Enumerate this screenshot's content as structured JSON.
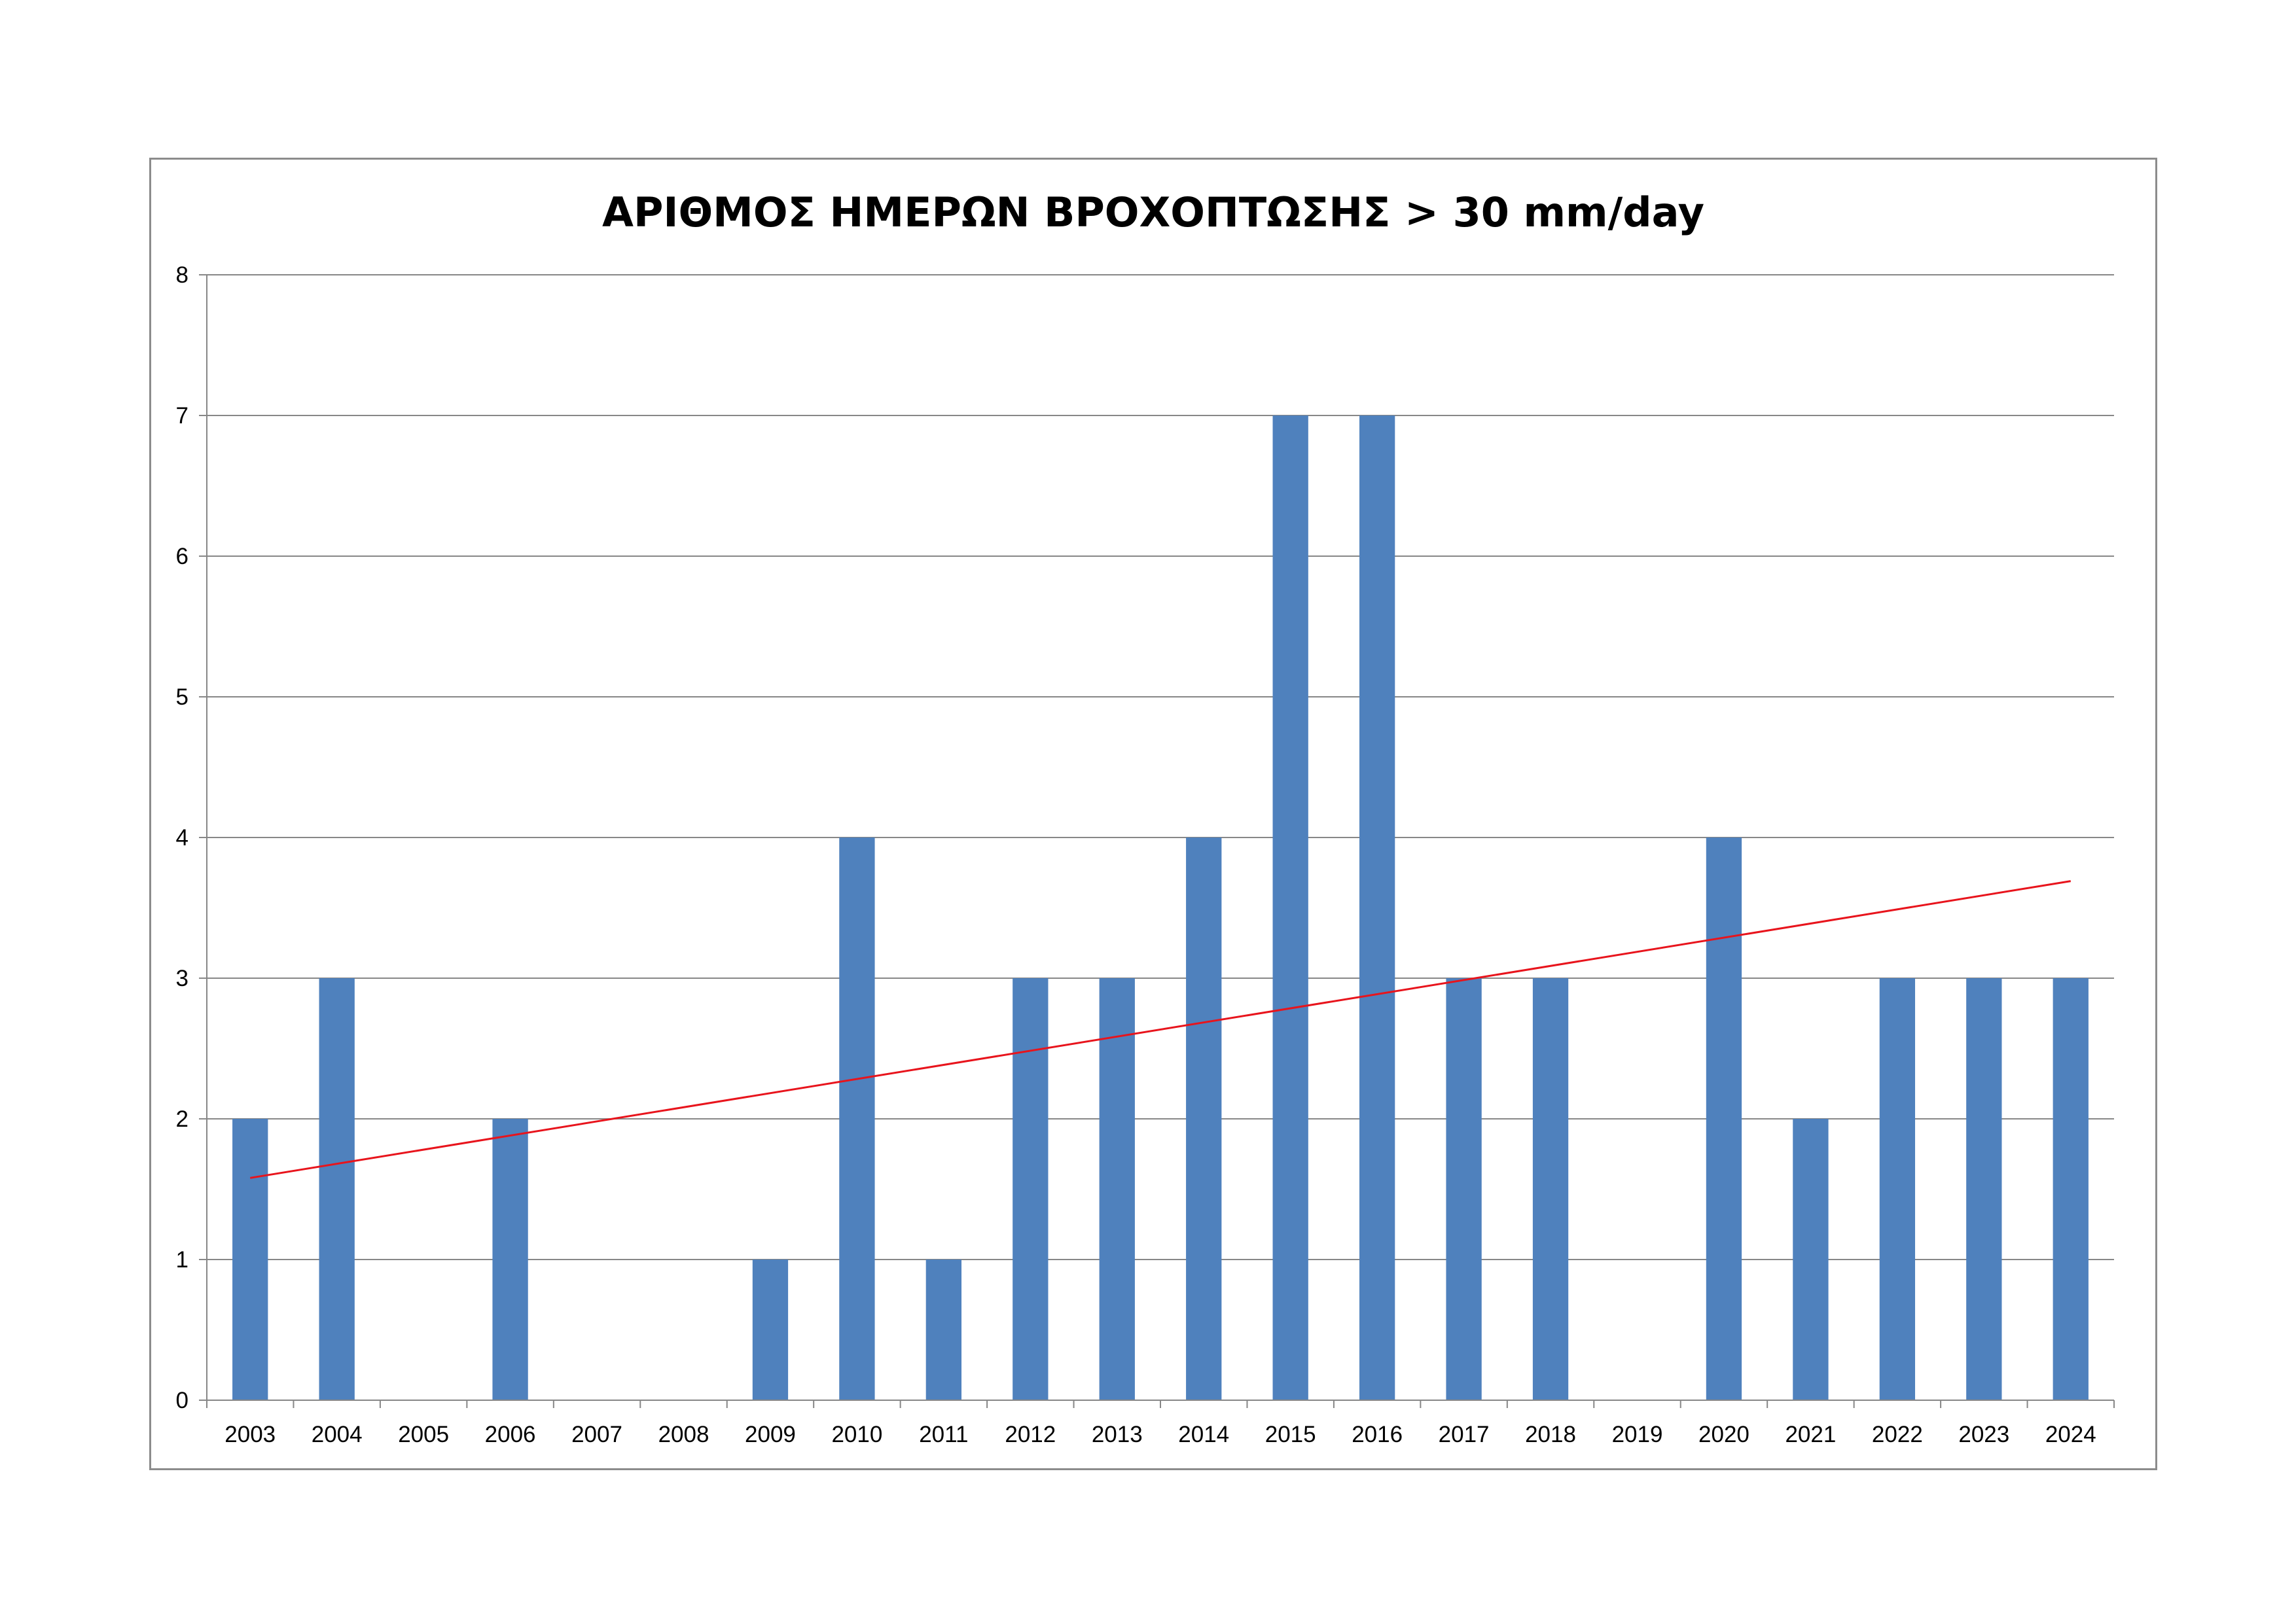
{
  "chart_data": {
    "type": "bar",
    "title": "ΑΡΙΘΜΟΣ ΗΜΕΡΩΝ ΒΡΟΧΟΠΤΩΣΗΣ > 30 mm/day",
    "xlabel": "",
    "ylabel": "",
    "categories": [
      "2003",
      "2004",
      "2005",
      "2006",
      "2007",
      "2008",
      "2009",
      "2010",
      "2011",
      "2012",
      "2013",
      "2014",
      "2015",
      "2016",
      "2017",
      "2018",
      "2019",
      "2020",
      "2021",
      "2022",
      "2023",
      "2024"
    ],
    "values": [
      2,
      3,
      0,
      2,
      0,
      0,
      1,
      4,
      1,
      3,
      3,
      4,
      7,
      7,
      3,
      3,
      0,
      4,
      2,
      3,
      3,
      3
    ],
    "ylim": [
      0,
      8
    ],
    "yticks": [
      "0",
      "1",
      "2",
      "3",
      "4",
      "5",
      "6",
      "7",
      "8"
    ],
    "grid": true,
    "legend": "none",
    "trendline": {
      "type": "linear",
      "start": {
        "x": "2003",
        "y": 1.58
      },
      "end": {
        "x": "2024",
        "y": 3.69
      }
    },
    "colors": {
      "bar": "#4f81bd",
      "trendline": "#e8141c",
      "grid": "#878787",
      "axis": "#878787",
      "frame": "#8c8c8c"
    }
  }
}
